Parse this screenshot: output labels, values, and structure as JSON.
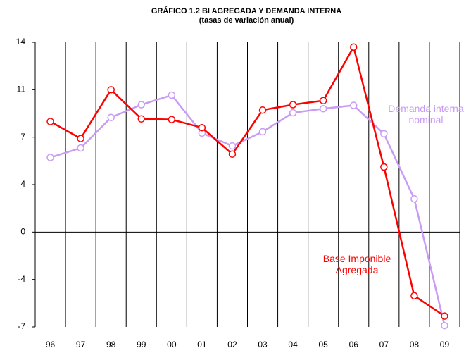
{
  "chart_data": {
    "type": "line",
    "title": "GRÁFICO 1.2   BI AGREGADA Y DEMANDA INTERNA",
    "subtitle": "(tasas de variación anual)",
    "categories": [
      "96",
      "97",
      "98",
      "99",
      "00",
      "01",
      "02",
      "03",
      "04",
      "05",
      "06",
      "07",
      "08",
      "09"
    ],
    "series": [
      {
        "name": "Base Imponible Agregada",
        "color": "#ff0000",
        "values": [
          8.15,
          6.9,
          10.5,
          8.35,
          8.3,
          7.7,
          5.75,
          9.0,
          9.4,
          9.7,
          13.65,
          4.8,
          -4.7,
          -6.2
        ]
      },
      {
        "name": "Demanda interna nominal",
        "color": "#c89bf5",
        "values": [
          5.5,
          6.2,
          8.45,
          9.4,
          10.1,
          7.3,
          6.35,
          7.4,
          8.8,
          9.1,
          9.35,
          7.25,
          2.45,
          -6.9
        ]
      }
    ],
    "ylim": [
      -7,
      14
    ],
    "yticks": [
      14,
      {
        "value": 10.5,
        "label": "11"
      },
      7,
      {
        "value": 3.5,
        "label": "4"
      },
      0,
      {
        "value": -3.5,
        "label": "-4"
      },
      -7
    ],
    "grid": true
  }
}
